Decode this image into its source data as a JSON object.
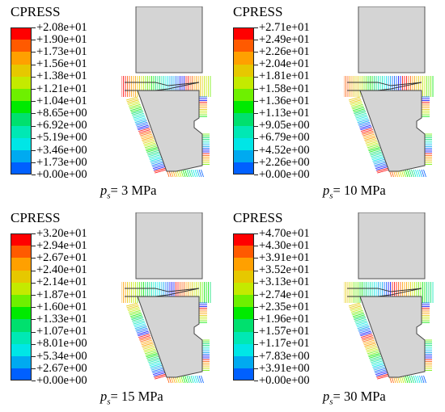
{
  "palette": [
    "#ff0000",
    "#ff5a00",
    "#ffa000",
    "#e6c800",
    "#c4ea00",
    "#6ef000",
    "#00ea00",
    "#00e06e",
    "#00e8b4",
    "#00e6e6",
    "#00aaf0",
    "#0060ff",
    "#0000ff"
  ],
  "panels": [
    {
      "title": "CPRESS",
      "legend": [
        "+2.08e+01",
        "+1.90e+01",
        "+1.73e+01",
        "+1.56e+01",
        "+1.38e+01",
        "+1.21e+01",
        "+1.04e+01",
        "+8.65e+00",
        "+6.92e+00",
        "+5.19e+00",
        "+3.46e+00",
        "+1.73e+00",
        "+0.00e+00"
      ],
      "caption": {
        "p": "p",
        "sub": "s",
        "text": "= 3 MPa"
      }
    },
    {
      "title": "CPRESS",
      "legend": [
        "+2.71e+01",
        "+2.49e+01",
        "+2.26e+01",
        "+2.04e+01",
        "+1.81e+01",
        "+1.58e+01",
        "+1.36e+01",
        "+1.13e+01",
        "+9.05e+00",
        "+6.79e+00",
        "+4.52e+00",
        "+2.26e+00",
        "+0.00e+00"
      ],
      "caption": {
        "p": "p",
        "sub": "s",
        "text": "= 10 MPa"
      }
    },
    {
      "title": "CPRESS",
      "legend": [
        "+3.20e+01",
        "+2.94e+01",
        "+2.67e+01",
        "+2.40e+01",
        "+2.14e+01",
        "+1.87e+01",
        "+1.60e+01",
        "+1.33e+01",
        "+1.07e+01",
        "+8.01e+00",
        "+5.34e+00",
        "+2.67e+00",
        "+0.00e+00"
      ],
      "caption": {
        "p": "p",
        "sub": "s",
        "text": "= 15 MPa"
      }
    },
    {
      "title": "CPRESS",
      "legend": [
        "+4.70e+01",
        "+4.30e+01",
        "+3.91e+01",
        "+3.52e+01",
        "+3.13e+01",
        "+2.74e+01",
        "+2.35e+01",
        "+1.96e+01",
        "+1.57e+01",
        "+1.17e+01",
        "+7.83e+00",
        "+3.91e+00",
        "+0.00e+00"
      ],
      "caption": {
        "p": "p",
        "sub": "s",
        "text": "= 30 MPa"
      }
    }
  ]
}
